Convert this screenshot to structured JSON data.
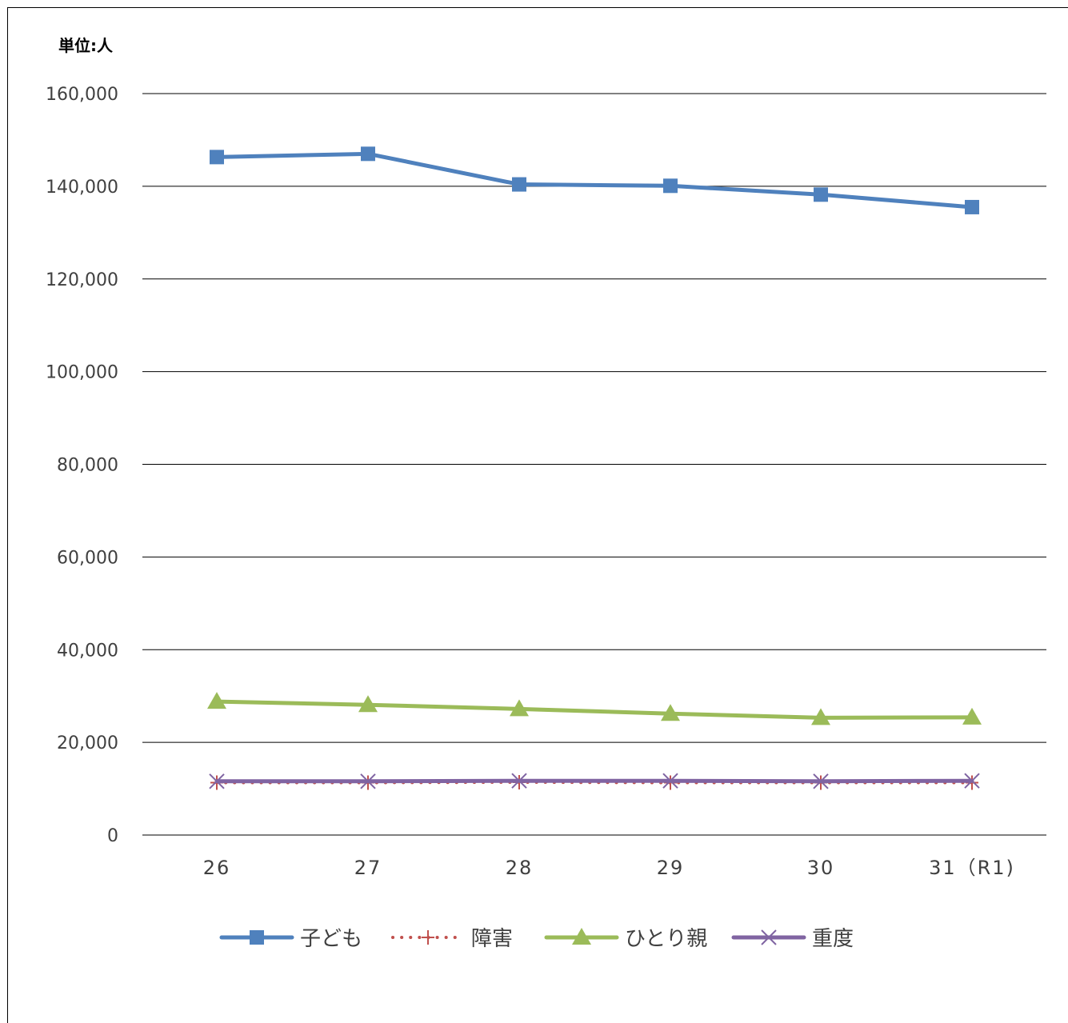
{
  "chart_data": {
    "type": "line",
    "unit_label": "単位:人",
    "categories": [
      "26",
      "27",
      "28",
      "29",
      "30",
      "31（R1)"
    ],
    "ylim": [
      0,
      160000
    ],
    "yticks": [
      "0",
      "20,000",
      "40,000",
      "60,000",
      "80,000",
      "100,000",
      "120,000",
      "140,000",
      "160,000"
    ],
    "grid": true,
    "legend_position": "bottom",
    "series": [
      {
        "name": "子ども",
        "color": "#4f81bd",
        "marker": "square",
        "dash": "solid",
        "values": [
          146300,
          147000,
          140400,
          140100,
          138200,
          135500
        ]
      },
      {
        "name": "障害",
        "color": "#c0504d",
        "marker": "plus",
        "dash": "dotted",
        "values": [
          11300,
          11300,
          11400,
          11300,
          11300,
          11300
        ]
      },
      {
        "name": "ひとり親",
        "color": "#9bbb59",
        "marker": "triangle",
        "dash": "solid",
        "values": [
          28800,
          28100,
          27200,
          26200,
          25300,
          25400
        ]
      },
      {
        "name": "重度",
        "color": "#8064a2",
        "marker": "x",
        "dash": "solid",
        "values": [
          11600,
          11600,
          11700,
          11700,
          11600,
          11700
        ]
      }
    ]
  }
}
